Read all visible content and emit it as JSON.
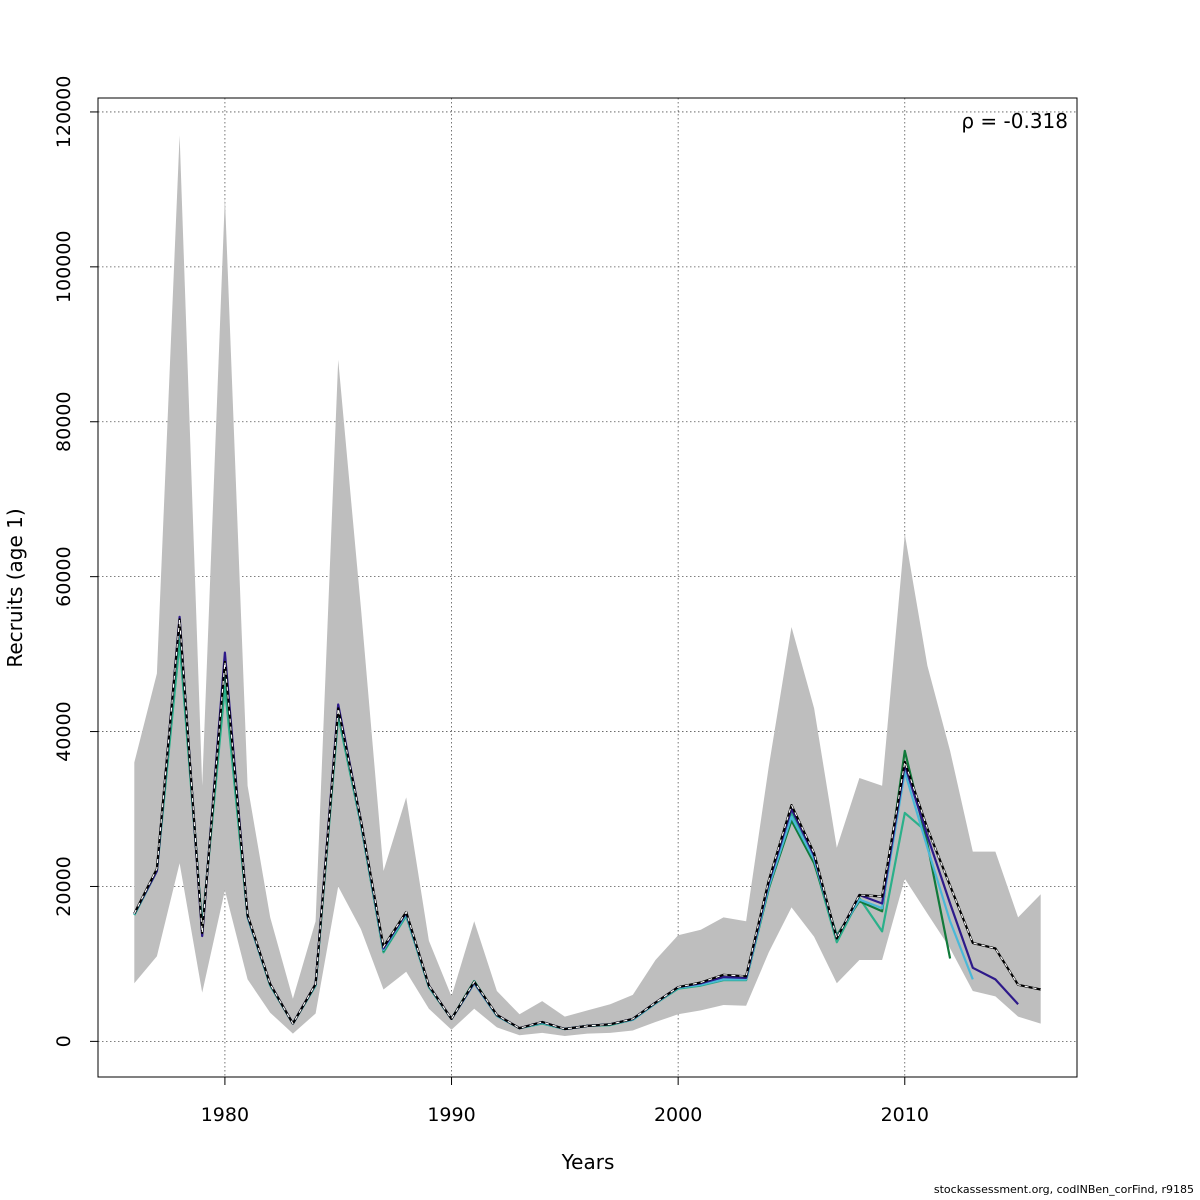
{
  "chart_data": {
    "type": "line",
    "xlabel": "Years",
    "ylabel": "Recruits (age 1)",
    "annotation": "ρ = -0.318",
    "footer": "stockassessment.org, codINBen_corFind, r9185",
    "xlim": [
      1974.4,
      2017.6
    ],
    "ylim": [
      -4600,
      121800
    ],
    "xticks": [
      1980,
      1990,
      2000,
      2010
    ],
    "yticks": [
      0,
      20000,
      40000,
      60000,
      80000,
      100000,
      120000
    ],
    "grid": true,
    "colors": {
      "band": "#bebebe",
      "base": "#000000",
      "series": [
        "#2e1a8a",
        "#4ab8d8",
        "#117a3a",
        "#2bb08a",
        "#8e9a2a"
      ]
    },
    "band": {
      "x": [
        1976,
        1977,
        1978,
        1979,
        1980,
        1981,
        1982,
        1983,
        1984,
        1985,
        1986,
        1987,
        1988,
        1989,
        1990,
        1991,
        1992,
        1993,
        1994,
        1995,
        1996,
        1997,
        1998,
        1999,
        2000,
        2001,
        2002,
        2003,
        2004,
        2005,
        2006,
        2007,
        2008,
        2009,
        2010,
        2011,
        2012,
        2013,
        2014,
        2015,
        2016
      ],
      "upper": [
        36000,
        47500,
        117000,
        33000,
        109000,
        33000,
        16000,
        5500,
        15500,
        88000,
        56000,
        22000,
        31500,
        13000,
        5800,
        15500,
        6500,
        3500,
        5200,
        3200,
        4000,
        4800,
        6000,
        10500,
        13700,
        14400,
        16000,
        15500,
        35500,
        53500,
        43000,
        25000,
        34000,
        33000,
        65500,
        48500,
        37500,
        24500,
        24500,
        16000,
        19000
      ],
      "lower": [
        7500,
        11000,
        23000,
        6300,
        19500,
        8000,
        3700,
        1000,
        3600,
        20000,
        14500,
        6700,
        9000,
        4200,
        1500,
        4200,
        1800,
        800,
        1100,
        700,
        1000,
        1100,
        1400,
        2500,
        3500,
        4000,
        4700,
        4600,
        11500,
        17300,
        13500,
        7500,
        10500,
        10500,
        21000,
        16500,
        12000,
        6500,
        5800,
        3200,
        2300
      ]
    },
    "series": [
      {
        "x": [
          1976,
          1977,
          1978,
          1979,
          1980,
          1981,
          1982,
          1983,
          1984,
          1985,
          1986,
          1987,
          1988,
          1989,
          1990,
          1991,
          1992,
          1993,
          1994,
          1995,
          1996,
          1997,
          1998,
          1999,
          2000,
          2001,
          2002,
          2003,
          2004,
          2005,
          2006,
          2007,
          2008,
          2009,
          2010,
          2011,
          2012,
          2013,
          2014,
          2015,
          2016
        ],
        "y": [
          16500,
          22300,
          54500,
          14000,
          49000,
          16300,
          7400,
          2300,
          7400,
          43000,
          28500,
          12200,
          16700,
          7200,
          2900,
          7700,
          3400,
          1700,
          2500,
          1600,
          2000,
          2200,
          2900,
          5000,
          7000,
          7600,
          8600,
          8400,
          20800,
          30500,
          24300,
          13300,
          18900,
          18700,
          36100,
          27500,
          20100,
          12700,
          12000,
          7300,
          6700
        ]
      },
      {
        "x": [
          1976,
          1977,
          1978,
          1979,
          1980,
          1981,
          1982,
          1983,
          1984,
          1985,
          1986,
          1987,
          1988,
          1989,
          1990,
          1991,
          1992,
          1993,
          1994,
          1995,
          1996,
          1997,
          1998,
          1999,
          2000,
          2001,
          2002,
          2003,
          2004,
          2005,
          2006,
          2007,
          2008,
          2009,
          2010,
          2011,
          2012,
          2013,
          2014,
          2015
        ],
        "y": [
          16500,
          22000,
          54800,
          13600,
          50200,
          16200,
          7400,
          2300,
          7400,
          43500,
          28500,
          12000,
          16600,
          7200,
          2900,
          7600,
          3400,
          1700,
          2500,
          1600,
          2000,
          2200,
          2900,
          5000,
          7000,
          7500,
          8300,
          8200,
          20500,
          30000,
          24000,
          13300,
          18900,
          17800,
          35700,
          26500,
          17800,
          9500,
          8000,
          4800
        ]
      },
      {
        "x": [
          1976,
          1977,
          1978,
          1979,
          1980,
          1981,
          1982,
          1983,
          1984,
          1985,
          1986,
          1987,
          1988,
          1989,
          1990,
          1991,
          1992,
          1993,
          1994,
          1995,
          1996,
          1997,
          1998,
          1999,
          2000,
          2001,
          2002,
          2003,
          2004,
          2005,
          2006,
          2007,
          2008,
          2009,
          2010,
          2011,
          2012,
          2013
        ],
        "y": [
          16400,
          22100,
          54000,
          14200,
          48800,
          16100,
          7300,
          2300,
          7300,
          42800,
          28200,
          11800,
          16400,
          7100,
          2900,
          7500,
          3300,
          1700,
          2400,
          1600,
          2000,
          2200,
          2800,
          4900,
          6900,
          7300,
          8000,
          8000,
          20000,
          29000,
          23500,
          13500,
          18300,
          17200,
          34800,
          25000,
          15500,
          8000
        ]
      },
      {
        "x": [
          1976,
          1977,
          1978,
          1979,
          1980,
          1981,
          1982,
          1983,
          1984,
          1985,
          1986,
          1987,
          1988,
          1989,
          1990,
          1991,
          1992,
          1993,
          1994,
          1995,
          1996,
          1997,
          1998,
          1999,
          2000,
          2001,
          2002,
          2003,
          2004,
          2005,
          2006,
          2007,
          2008,
          2009,
          2010,
          2011,
          2012
        ],
        "y": [
          16400,
          22100,
          53500,
          14300,
          48300,
          16100,
          7300,
          2300,
          7300,
          42600,
          28100,
          11700,
          16400,
          7100,
          2900,
          7500,
          3300,
          1700,
          2400,
          1600,
          2000,
          2200,
          2800,
          4900,
          6900,
          7300,
          8000,
          8000,
          19800,
          28500,
          23000,
          13700,
          18100,
          16800,
          37500,
          25500,
          10700
        ]
      },
      {
        "x": [
          1976,
          1977,
          1978,
          1979,
          1980,
          1981,
          1982,
          1983,
          1984,
          1985,
          1986,
          1987,
          1988,
          1989,
          1990,
          1991,
          1992,
          1993,
          1994,
          1995,
          1996,
          1997,
          1998,
          1999,
          2000,
          2001,
          2002,
          2003,
          2004,
          2005,
          2006,
          2007,
          2008,
          2009,
          2010,
          2011
        ],
        "y": [
          16300,
          22000,
          51500,
          14800,
          45800,
          16000,
          7200,
          2300,
          7200,
          42000,
          28000,
          11500,
          16200,
          7000,
          2900,
          7800,
          3300,
          1700,
          2300,
          1600,
          2000,
          2100,
          2800,
          4900,
          6800,
          7200,
          7900,
          7900,
          19700,
          29500,
          23200,
          12800,
          18500,
          14200,
          29500,
          27000
        ]
      }
    ]
  }
}
